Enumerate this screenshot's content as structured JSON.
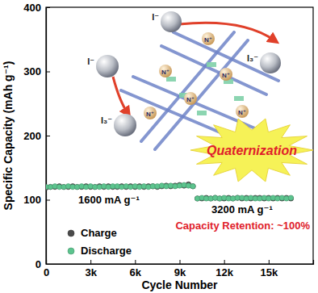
{
  "chart_data": {
    "type": "scatter",
    "x_label": "Cycle Number",
    "y_label": "Specific Capacity (mAh g⁻¹)",
    "xlim": [
      0,
      18000
    ],
    "ylim": [
      0,
      400
    ],
    "xticks": [
      0,
      {
        "value": 3000,
        "label": "3k"
      },
      {
        "value": 6000,
        "label": "6k"
      },
      {
        "value": 9000,
        "label": "9k"
      },
      {
        "value": 12000,
        "label": "12k"
      },
      {
        "value": 15000,
        "label": "15k"
      }
    ],
    "yticks": [
      0,
      100,
      200,
      300,
      400
    ],
    "legend": "lower left",
    "x": [
      0,
      300,
      600,
      900,
      1200,
      1500,
      1800,
      2100,
      2400,
      2700,
      3000,
      3300,
      3600,
      3900,
      4200,
      4500,
      4800,
      5100,
      5400,
      5700,
      6000,
      6300,
      6600,
      6900,
      7200,
      7500,
      7800,
      8100,
      8400,
      8700,
      9000,
      9300,
      9600,
      9900,
      10200,
      10500,
      10800,
      11100,
      11400,
      11700,
      12000,
      12300,
      12600,
      12900,
      13200,
      13500,
      13800,
      14100,
      14400,
      14700,
      15000,
      15300,
      15600,
      15900,
      16200,
      16500
    ],
    "series": [
      {
        "name": "Charge",
        "color": "#4a4a4a",
        "marker": "circle",
        "values": [
          119,
          120,
          120,
          121,
          120,
          120,
          121,
          120,
          120,
          121,
          120,
          120,
          121,
          120,
          121,
          120,
          120,
          121,
          120,
          121,
          120,
          121,
          120,
          121,
          121,
          120,
          121,
          122,
          121,
          122,
          123,
          122,
          124,
          121,
          102,
          102,
          103,
          102,
          103,
          102,
          102,
          103,
          102,
          103,
          102,
          103,
          102,
          103,
          103,
          102,
          103,
          102,
          103,
          102,
          103,
          102
        ]
      },
      {
        "name": "Discharge",
        "color": "#5cc48e",
        "marker": "circle",
        "values": [
          120,
          120,
          121,
          120,
          120,
          121,
          120,
          120,
          121,
          120,
          121,
          120,
          120,
          121,
          120,
          121,
          121,
          120,
          121,
          120,
          121,
          120,
          121,
          120,
          121,
          121,
          122,
          121,
          122,
          121,
          122,
          123,
          122,
          121,
          102,
          103,
          102,
          102,
          103,
          102,
          103,
          102,
          102,
          103,
          103,
          102,
          103,
          102,
          102,
          103,
          102,
          103,
          102,
          103,
          102,
          103
        ]
      }
    ],
    "annotations": [
      "Quaternization",
      "1600 mA g⁻¹",
      "3200 mA g⁻¹",
      "Capacity Retention: ~100%",
      "I⁻",
      "I⁻",
      "I₃⁻",
      "I₃⁻",
      "N⁺",
      "N⁺",
      "N⁺",
      "N⁺",
      "N⁺",
      "N⁺"
    ]
  }
}
